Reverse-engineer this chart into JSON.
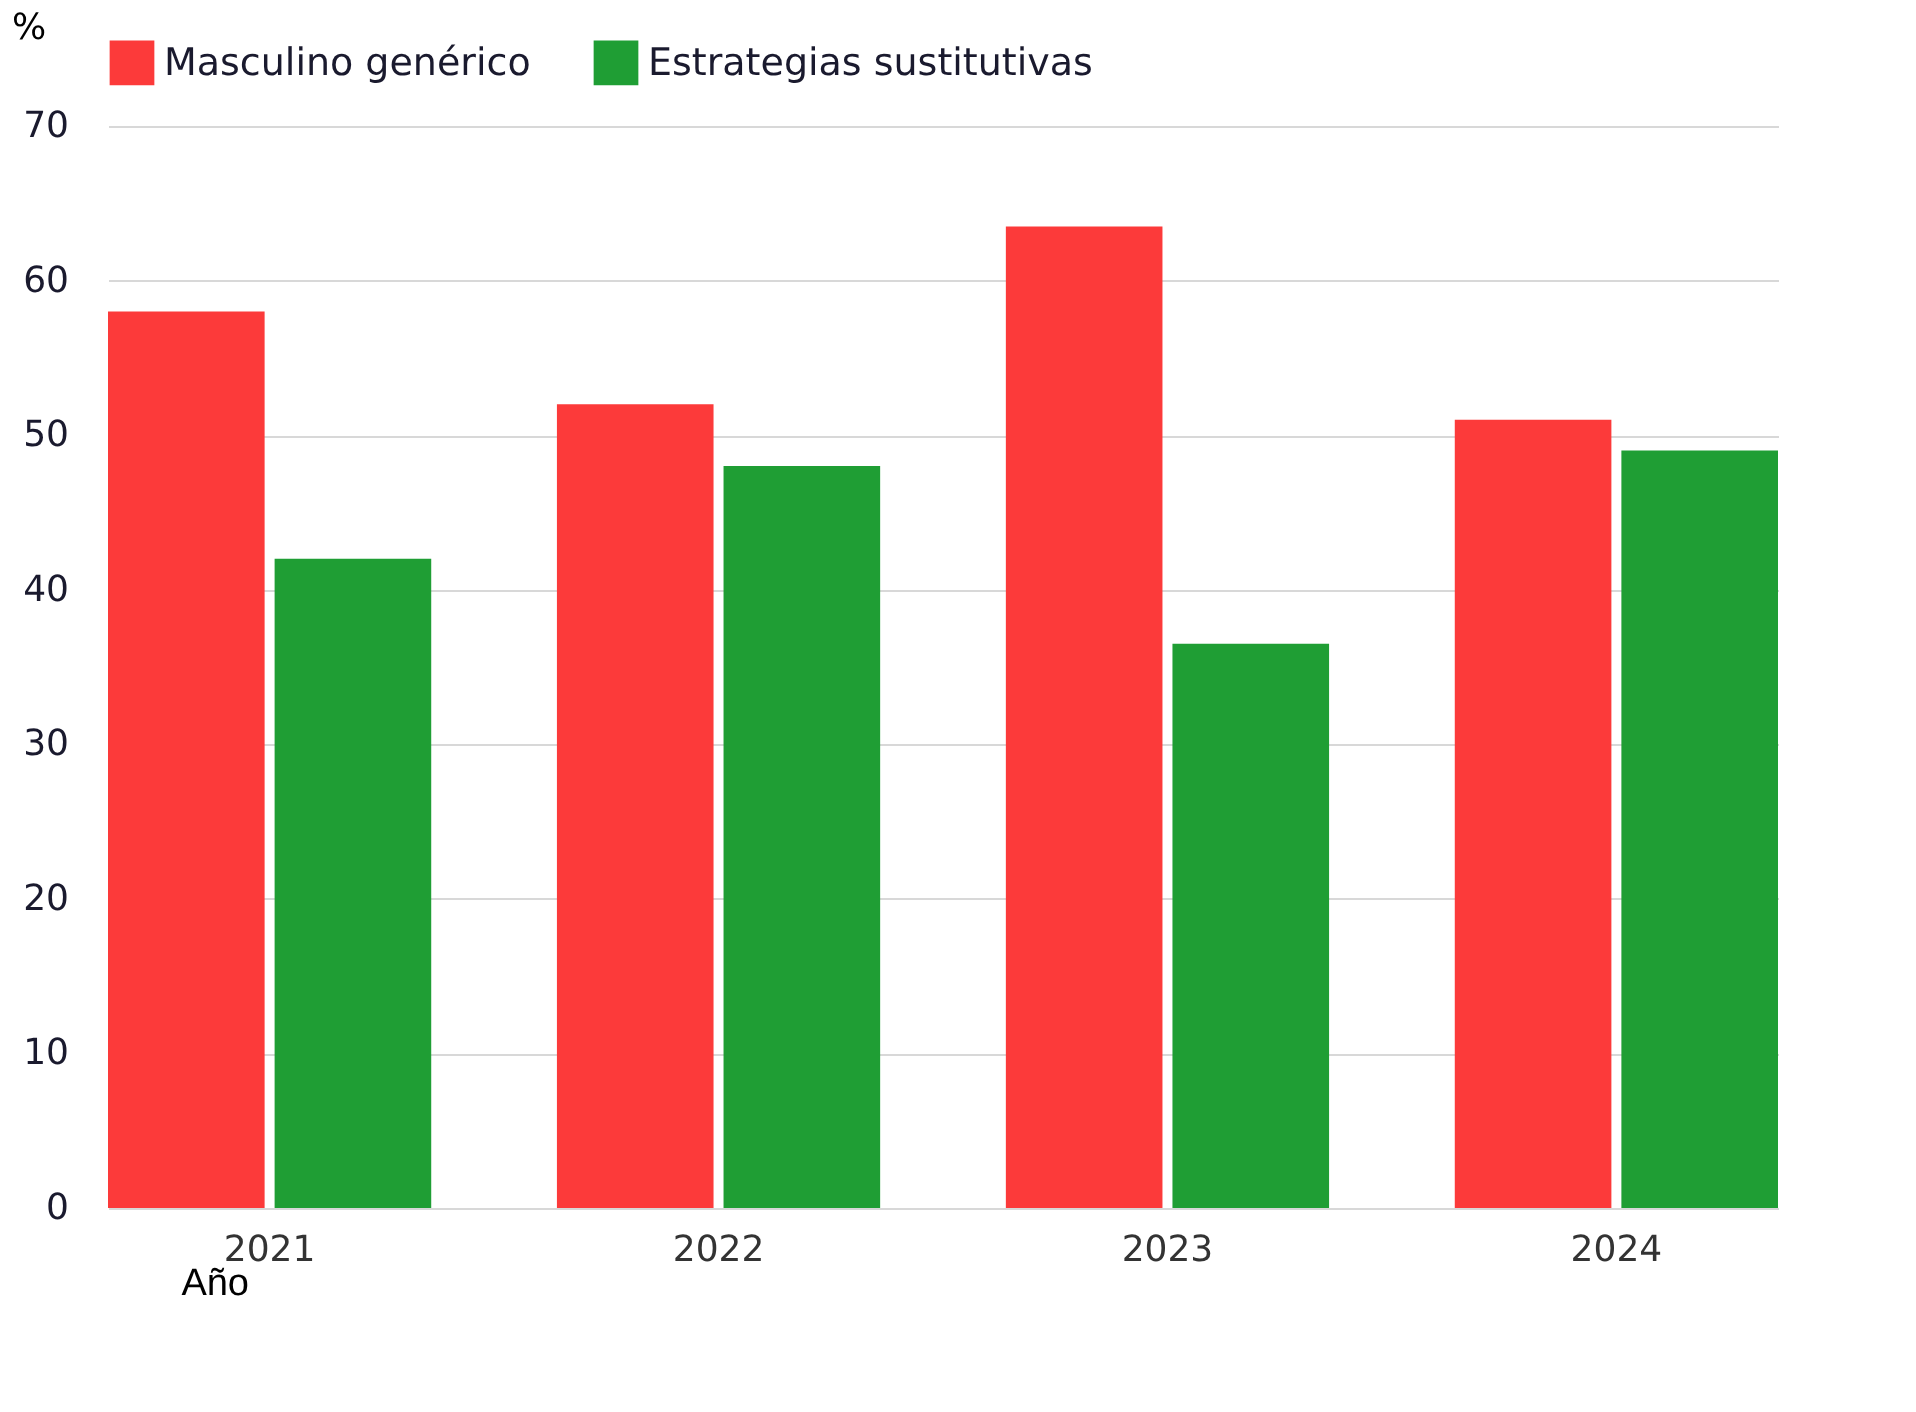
{
  "chart_data": {
    "type": "bar",
    "ylabel": "%",
    "xlabel": "Año",
    "categories": [
      "2021",
      "2022",
      "2023",
      "2024"
    ],
    "series": [
      {
        "name": "Masculino genérico",
        "color": "#fc3a3a",
        "values": [
          58,
          52,
          63.5,
          51
        ]
      },
      {
        "name": "Estrategias sustitutivas",
        "color": "#1f9e34",
        "values": [
          42,
          48,
          36.5,
          49
        ]
      }
    ],
    "ylim": [
      0,
      70
    ],
    "yticks": [
      0,
      10,
      20,
      30,
      40,
      50,
      60,
      70
    ],
    "grid": "y",
    "legend": "top"
  }
}
